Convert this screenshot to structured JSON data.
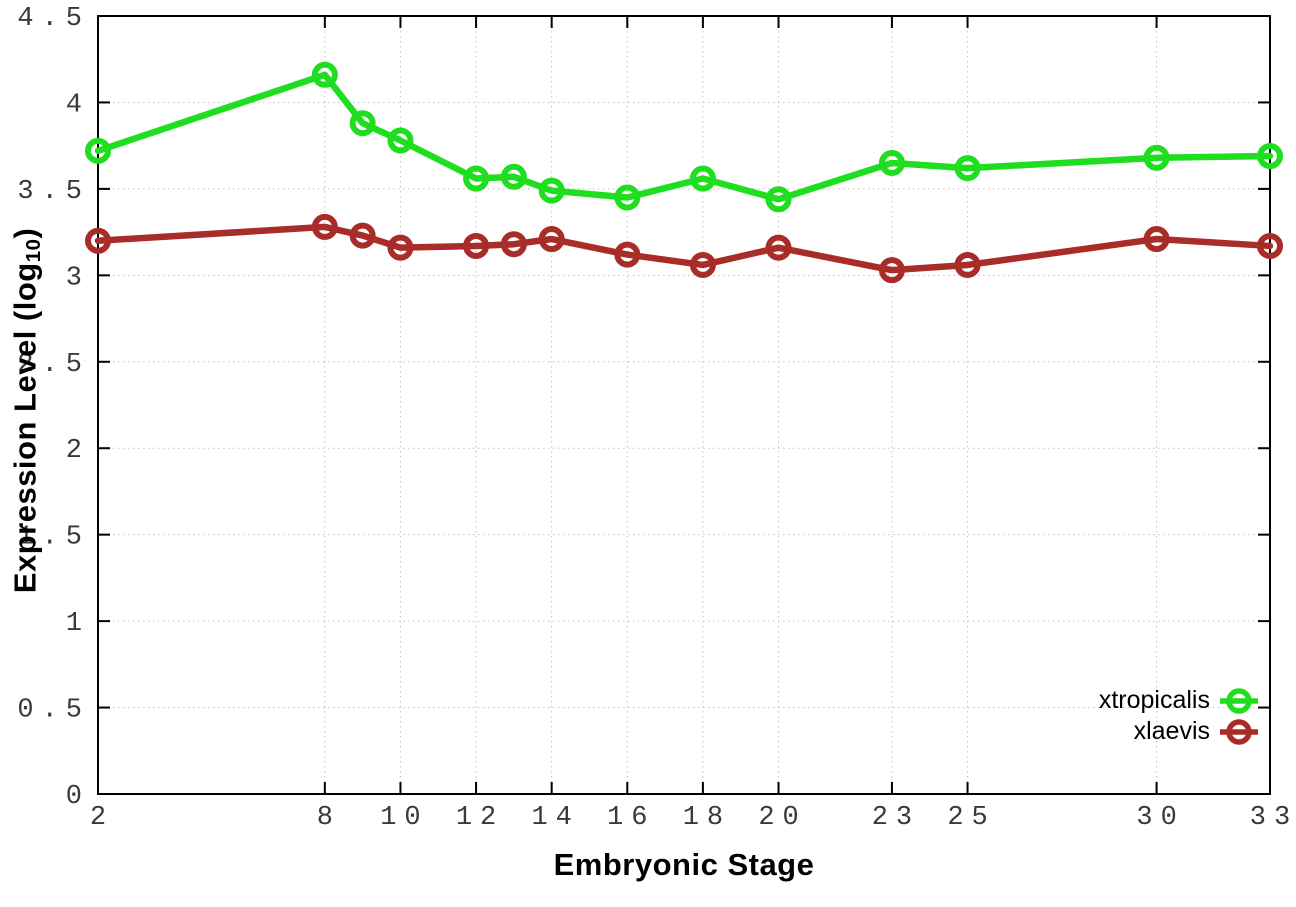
{
  "figure": {
    "xlabel": "Embryonic Stage",
    "ylabel": {
      "prefix": "Expression Level (log",
      "sub": "10",
      "suffix": ")"
    }
  },
  "chart_data": {
    "type": "line",
    "title": "",
    "xlabel": "Embryonic Stage",
    "ylabel": "Expression Level (log10)",
    "x": [
      2,
      8,
      9,
      10,
      12,
      13,
      14,
      16,
      18,
      20,
      23,
      25,
      30,
      33
    ],
    "series": [
      {
        "name": "xtropicalis",
        "color": "#1fdd1f",
        "values": [
          3.72,
          4.16,
          3.88,
          3.78,
          3.56,
          3.57,
          3.49,
          3.45,
          3.56,
          3.44,
          3.65,
          3.62,
          3.68,
          3.69
        ]
      },
      {
        "name": "xlaevis",
        "color": "#a82c28",
        "values": [
          3.2,
          3.28,
          3.23,
          3.16,
          3.17,
          3.18,
          3.21,
          3.12,
          3.06,
          3.16,
          3.03,
          3.06,
          3.21,
          3.17
        ]
      }
    ],
    "xlim": [
      2,
      33
    ],
    "ylim": [
      0,
      4.5
    ],
    "xticks": [
      2,
      8,
      10,
      12,
      14,
      16,
      18,
      20,
      23,
      25,
      30,
      33
    ],
    "yticks": [
      0,
      0.5,
      1,
      1.5,
      2,
      2.5,
      3,
      3.5,
      4,
      4.5
    ],
    "grid": true,
    "legend_position": "bottom-right",
    "marker": "open-circle",
    "axis_color": "#000000",
    "grid_color": "#c2c2c2",
    "tick_label_color": "#3a3a3a",
    "background_color": "#ffffff"
  }
}
